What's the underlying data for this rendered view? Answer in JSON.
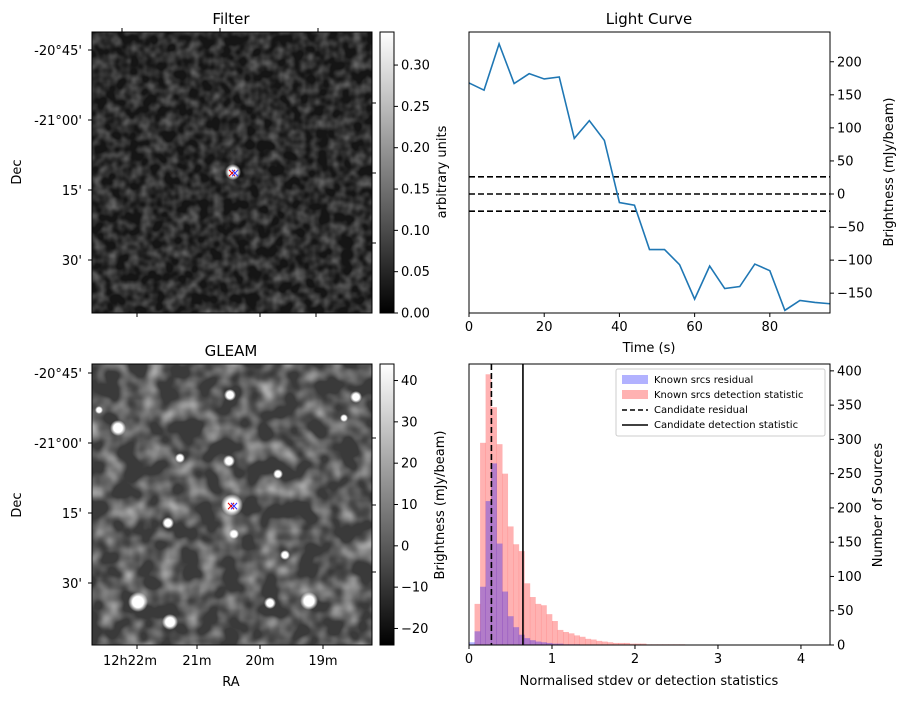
{
  "panels": {
    "filter": {
      "title": "Filter",
      "ylabel": "Dec",
      "colorbar_label": "arbitrary units",
      "colorbar_ticks": [
        "0.00",
        "0.05",
        "0.10",
        "0.15",
        "0.20",
        "0.25",
        "0.30"
      ],
      "colorbar_range": [
        0,
        0.34
      ],
      "dec_ticks": [
        "-20°45'",
        "-21°00'",
        "15'",
        "30'"
      ]
    },
    "gleam": {
      "title": "GLEAM",
      "ylabel": "Dec",
      "xlabel": "RA",
      "colorbar_label": "Brightness (mJy/beam)",
      "colorbar_ticks": [
        "−20",
        "−10",
        "0",
        "10",
        "20",
        "30",
        "40"
      ],
      "colorbar_range": [
        -24,
        44
      ],
      "dec_ticks": [
        "-20°45'",
        "-21°00'",
        "15'",
        "30'"
      ],
      "ra_ticks": [
        "12h22m",
        "21m",
        "20m",
        "19m"
      ]
    }
  },
  "chart_data": [
    {
      "type": "line",
      "title": "Light Curve",
      "xlabel": "Time (s)",
      "ylabel": "Brightness (mJy/beam)",
      "xlim": [
        0,
        96
      ],
      "ylim": [
        -180,
        245
      ],
      "xticks": [
        0,
        20,
        40,
        60,
        80
      ],
      "yticks": [
        -150,
        -100,
        -50,
        0,
        50,
        100,
        150,
        200
      ],
      "color": "#1f77b4",
      "x": [
        0,
        4,
        8,
        12,
        16,
        20,
        24,
        28,
        32,
        36,
        40,
        44,
        48,
        52,
        56,
        60,
        64,
        68,
        72,
        76,
        80,
        84,
        88,
        92,
        96
      ],
      "y": [
        168,
        157,
        227,
        167,
        182,
        174,
        177,
        84,
        111,
        81,
        -13,
        -17,
        -84,
        -84,
        -107,
        -159,
        -109,
        -143,
        -140,
        -106,
        -116,
        -176,
        -161,
        -164,
        -166
      ],
      "hlines": [
        26,
        0,
        -26
      ]
    },
    {
      "type": "bar",
      "xlabel": "Normalised stdev or detection statistics",
      "ylabel": "Number of Sources",
      "xlim": [
        0,
        4.35
      ],
      "ylim": [
        0,
        410
      ],
      "xticks": [
        0,
        1,
        2,
        3,
        4
      ],
      "yticks": [
        0,
        50,
        100,
        150,
        200,
        250,
        300,
        350,
        400
      ],
      "bin_width": 0.0667,
      "legend": {
        "position": "top-right",
        "entries": [
          "Known srcs residual",
          "Known srcs detection statistic",
          "Candidate residual",
          "Candidate detection statistic"
        ]
      },
      "series": [
        {
          "name": "Known srcs residual",
          "color": "#0000ff",
          "bin_start": 0.0,
          "values": [
            4,
            20,
            85,
            210,
            265,
            148,
            78,
            42,
            26,
            15,
            10,
            7,
            5,
            4,
            3,
            2,
            2,
            1,
            1,
            1
          ]
        },
        {
          "name": "Known srcs detection statistic",
          "color": "#ff0000",
          "bin_start": 0.0667,
          "values": [
            60,
            295,
            395,
            347,
            293,
            250,
            173,
            147,
            137,
            90,
            70,
            60,
            58,
            45,
            35,
            22,
            19,
            17,
            14,
            12,
            9,
            8,
            6,
            5,
            4,
            3,
            3,
            3,
            2,
            2,
            2,
            1,
            1,
            1,
            1,
            1,
            1,
            1
          ]
        }
      ],
      "candidate_residual": 0.27,
      "candidate_detection_statistic": 0.65
    }
  ]
}
